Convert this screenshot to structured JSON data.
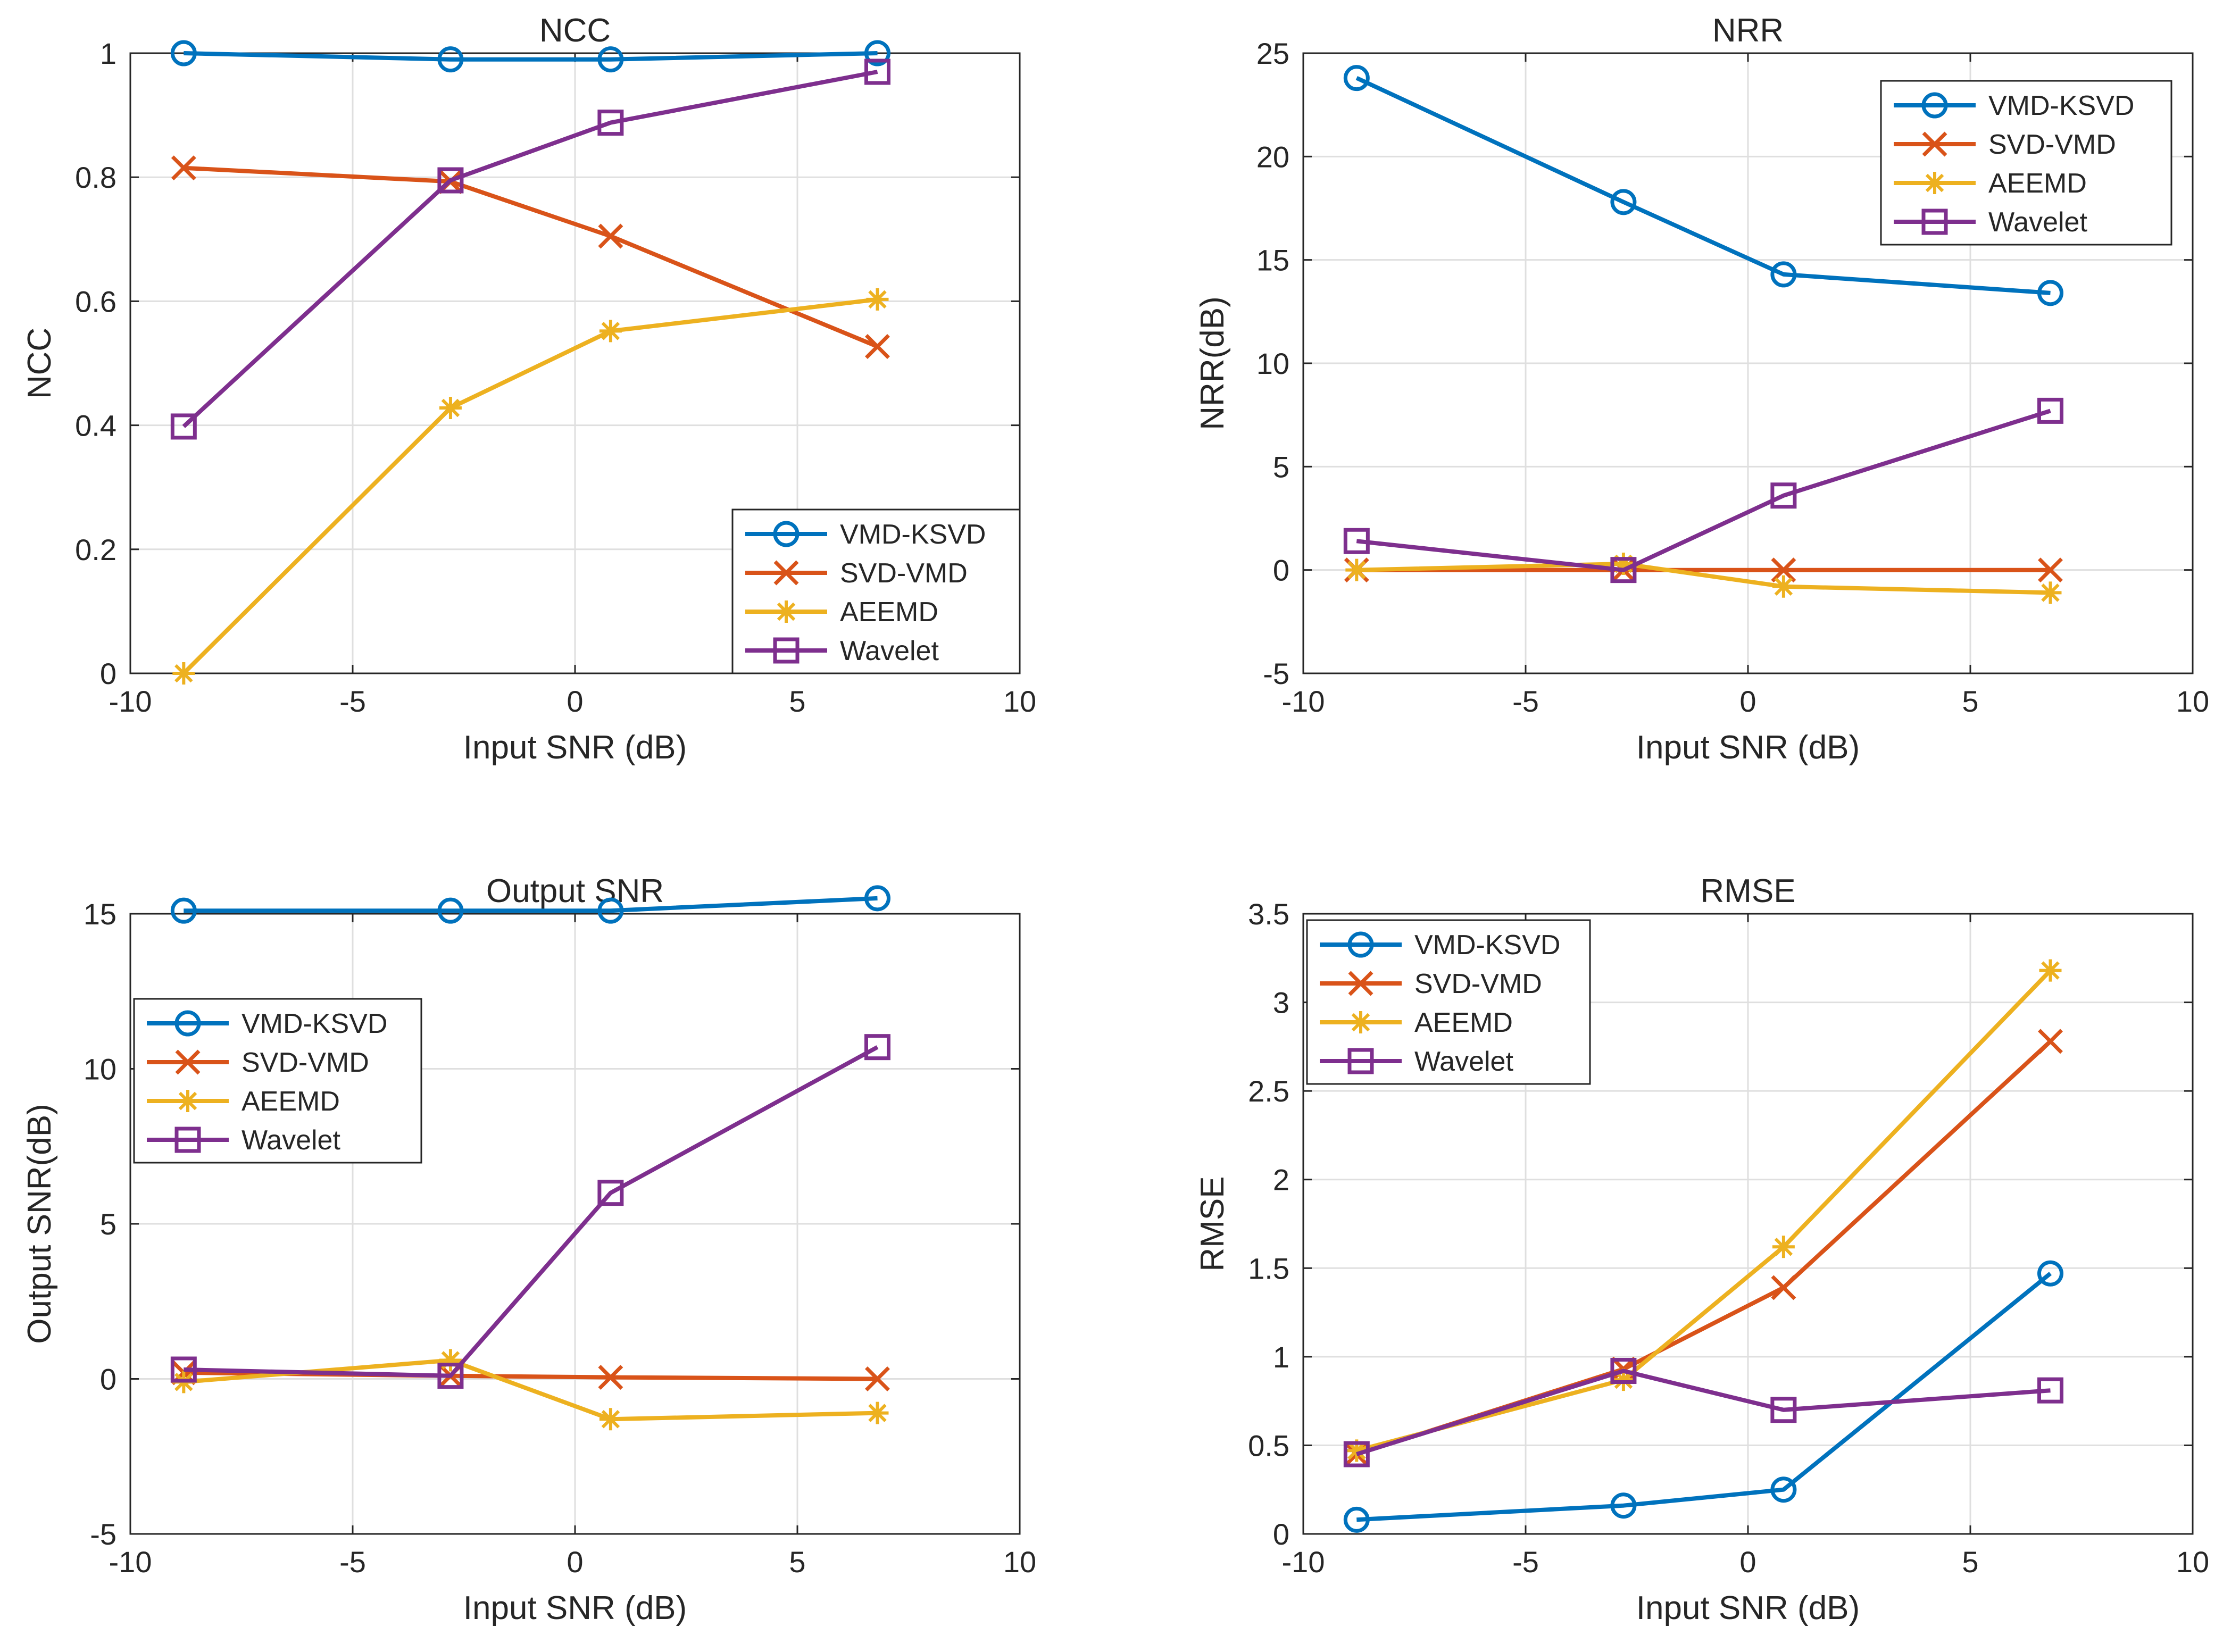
{
  "figure": {
    "background": "#ffffff"
  },
  "series_styles": {
    "VMD-KSVD": {
      "color": "#0072BD",
      "marker": "circle"
    },
    "SVD-VMD": {
      "color": "#D95319",
      "marker": "x"
    },
    "AEEMD": {
      "color": "#EDB120",
      "marker": "asterisk"
    },
    "Wavelet": {
      "color": "#7E2F8E",
      "marker": "square"
    }
  },
  "chart_data": [
    {
      "id": "ncc",
      "type": "line",
      "title": "NCC",
      "xlabel": "Input SNR (dB)",
      "ylabel": "NCC",
      "xlim": [
        -10,
        10
      ],
      "ylim": [
        0,
        1
      ],
      "xticks": [
        -10,
        -5,
        0,
        5,
        10
      ],
      "yticks": [
        0,
        0.2,
        0.4,
        0.6,
        0.8,
        1
      ],
      "xtick_labels": [
        "-10",
        "-5",
        "0",
        "5",
        "10"
      ],
      "ytick_labels": [
        "0",
        "0.2",
        "0.4",
        "0.6",
        "0.8",
        "1"
      ],
      "grid": true,
      "legend": {
        "position": "bottom-right",
        "entries": [
          "VMD-KSVD",
          "SVD-VMD",
          "AEEMD",
          "Wavelet"
        ]
      },
      "x": [
        -8.8,
        -2.8,
        0.8,
        6.8
      ],
      "series": [
        {
          "name": "VMD-KSVD",
          "values": [
            1.0,
            0.99,
            0.99,
            1.0
          ]
        },
        {
          "name": "SVD-VMD",
          "values": [
            0.815,
            0.793,
            0.705,
            0.527
          ]
        },
        {
          "name": "AEEMD",
          "values": [
            0.0,
            0.428,
            0.552,
            0.603
          ]
        },
        {
          "name": "Wavelet",
          "values": [
            0.398,
            0.795,
            0.888,
            0.97
          ]
        }
      ]
    },
    {
      "id": "nrr",
      "type": "line",
      "title": "NRR",
      "xlabel": "Input SNR (dB)",
      "ylabel": "NRR(dB)",
      "xlim": [
        -10,
        10
      ],
      "ylim": [
        -5,
        25
      ],
      "xticks": [
        -10,
        -5,
        0,
        5,
        10
      ],
      "yticks": [
        -5,
        0,
        5,
        10,
        15,
        20,
        25
      ],
      "xtick_labels": [
        "-10",
        "-5",
        "0",
        "5",
        "10"
      ],
      "ytick_labels": [
        "-5",
        "0",
        "5",
        "10",
        "15",
        "20",
        "25"
      ],
      "grid": true,
      "legend": {
        "position": "top-right",
        "entries": [
          "VMD-KSVD",
          "SVD-VMD",
          "AEEMD",
          "Wavelet"
        ]
      },
      "x": [
        -8.8,
        -2.8,
        0.8,
        6.8
      ],
      "series": [
        {
          "name": "VMD-KSVD",
          "values": [
            23.8,
            17.8,
            14.3,
            13.4
          ]
        },
        {
          "name": "SVD-VMD",
          "values": [
            0.0,
            0.0,
            0.0,
            0.0
          ]
        },
        {
          "name": "AEEMD",
          "values": [
            0.0,
            0.3,
            -0.8,
            -1.1
          ]
        },
        {
          "name": "Wavelet",
          "values": [
            1.4,
            0.0,
            3.6,
            7.7
          ]
        }
      ]
    },
    {
      "id": "output-snr",
      "type": "line",
      "title": "Output SNR",
      "xlabel": "Input SNR (dB)",
      "ylabel": "Output SNR(dB)",
      "xlim": [
        -10,
        10
      ],
      "ylim": [
        -5,
        15
      ],
      "xticks": [
        -10,
        -5,
        0,
        5,
        10
      ],
      "yticks": [
        -5,
        0,
        5,
        10,
        15
      ],
      "xtick_labels": [
        "-10",
        "-5",
        "0",
        "5",
        "10"
      ],
      "ytick_labels": [
        "-5",
        "0",
        "5",
        "10",
        "15"
      ],
      "grid": true,
      "legend": {
        "position": "middle-left",
        "entries": [
          "VMD-KSVD",
          "SVD-VMD",
          "AEEMD",
          "Wavelet"
        ]
      },
      "x": [
        -8.8,
        -2.8,
        0.8,
        6.8
      ],
      "series": [
        {
          "name": "VMD-KSVD",
          "values": [
            15.1,
            15.1,
            15.1,
            15.5
          ]
        },
        {
          "name": "SVD-VMD",
          "values": [
            0.2,
            0.1,
            0.05,
            0.0
          ]
        },
        {
          "name": "AEEMD",
          "values": [
            -0.1,
            0.6,
            -1.3,
            -1.1
          ]
        },
        {
          "name": "Wavelet",
          "values": [
            0.3,
            0.1,
            6.0,
            10.7
          ]
        }
      ]
    },
    {
      "id": "rmse",
      "type": "line",
      "title": "RMSE",
      "xlabel": "Input SNR (dB)",
      "ylabel": "RMSE",
      "xlim": [
        -10,
        10
      ],
      "ylim": [
        0,
        3.5
      ],
      "xticks": [
        -10,
        -5,
        0,
        5,
        10
      ],
      "yticks": [
        0,
        0.5,
        1,
        1.5,
        2,
        2.5,
        3,
        3.5
      ],
      "xtick_labels": [
        "-10",
        "-5",
        "0",
        "5",
        "10"
      ],
      "ytick_labels": [
        "0",
        "0.5",
        "1",
        "1.5",
        "2",
        "2.5",
        "3",
        "3.5"
      ],
      "grid": true,
      "legend": {
        "position": "top-left",
        "entries": [
          "VMD-KSVD",
          "SVD-VMD",
          "AEEMD",
          "Wavelet"
        ]
      },
      "x": [
        -8.8,
        -2.8,
        0.8,
        6.8
      ],
      "series": [
        {
          "name": "VMD-KSVD",
          "values": [
            0.08,
            0.16,
            0.25,
            1.47
          ]
        },
        {
          "name": "SVD-VMD",
          "values": [
            0.45,
            0.93,
            1.39,
            2.78
          ]
        },
        {
          "name": "AEEMD",
          "values": [
            0.47,
            0.87,
            1.62,
            3.18
          ]
        },
        {
          "name": "Wavelet",
          "values": [
            0.45,
            0.92,
            0.7,
            0.81
          ]
        }
      ]
    }
  ]
}
